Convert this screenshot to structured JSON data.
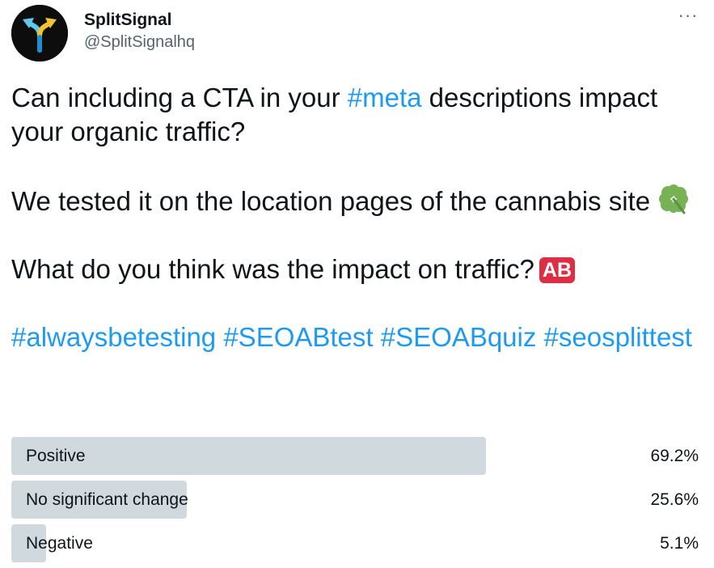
{
  "author": {
    "name": "SplitSignal",
    "handle": "@SplitSignalhq",
    "avatar_colors": {
      "background": "#0d0d0d",
      "left_arrow": "#5ec8f0",
      "right_arrow": "#f2c230",
      "stem": "#1f8fd0"
    }
  },
  "menu": {
    "more_icon": "more-horizontal-icon",
    "more_glyph": "···"
  },
  "tweet": {
    "line1_pre": "Can including a CTA in your ",
    "line1_tag": "#meta",
    "line1_post": " descriptions impact your organic traffic?",
    "line2": "We tested it on the location pages of the cannabis site ",
    "line2_emoji": "four-leaf-clover-icon",
    "line3": "What do you think was the impact on traffic?",
    "line3_badge": "AB",
    "hashtags": [
      "#alwaysbetesting",
      "#SEOABtest",
      "#SEOABquiz",
      "#seosplittest"
    ]
  },
  "poll": {
    "bar_color": "#cfd9de",
    "options": [
      {
        "label": "Positive",
        "percent_text": "69.2%",
        "percent": 69.2
      },
      {
        "label": "No significant change",
        "percent_text": "25.6%",
        "percent": 25.6
      },
      {
        "label": "Negative",
        "percent_text": "5.1%",
        "percent": 5.1
      }
    ]
  },
  "colors": {
    "link": "#1d9bf0",
    "text": "#0f1419",
    "secondary": "#536471",
    "badge_red": "#dd2e44"
  }
}
